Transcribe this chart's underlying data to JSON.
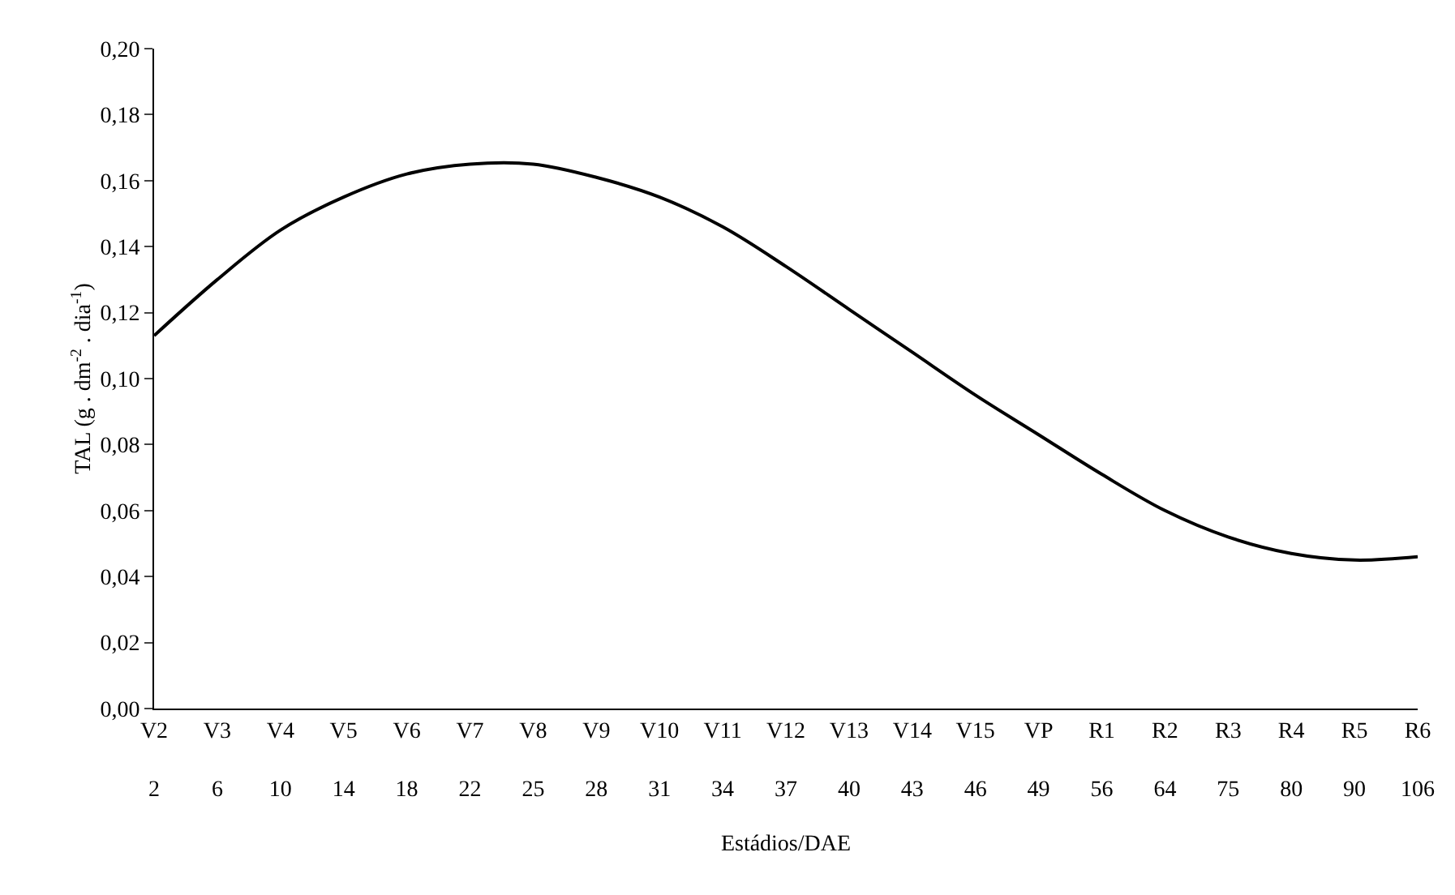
{
  "chart_data": {
    "type": "line",
    "xlabel": "Estádios/DAE",
    "ylabel": "TAL (g . dm$^{-2}$ . dia$^{-1}$)",
    "categories": [
      "V2\n2",
      "V3\n6",
      "V4\n10",
      "V5\n14",
      "V6\n18",
      "V7\n22",
      "V8\n25",
      "V9\n28",
      "V10\n31",
      "V11\n34",
      "V12\n37",
      "V13\n40",
      "V14\n43",
      "V15\n46",
      "VP\n49",
      "R1\n56",
      "R2\n64",
      "R3\n75",
      "R4\n80",
      "R5\n90",
      "R6\n106"
    ],
    "series": [
      {
        "color": "#000000",
        "values": [
          0.113,
          0.13,
          0.145,
          0.155,
          0.162,
          0.165,
          0.165,
          0.161,
          0.155,
          0.146,
          0.134,
          0.121,
          0.108,
          0.095,
          0.083,
          0.071,
          0.06,
          0.052,
          0.047,
          0.045,
          0.046
        ]
      }
    ],
    "ylim": [
      0,
      0.2
    ],
    "yticks": [
      {
        "value": 0,
        "label": "0,00"
      },
      {
        "value": 0.02,
        "label": "0,02"
      },
      {
        "value": 0.04,
        "label": "0,04"
      },
      {
        "value": 0.06,
        "label": "0,06"
      },
      {
        "value": 0.08,
        "label": "0,08"
      },
      {
        "value": 0.1,
        "label": "0,10"
      },
      {
        "value": 0.12,
        "label": "0,12"
      },
      {
        "value": 0.14,
        "label": "0,14"
      },
      {
        "value": 0.16,
        "label": "0,16"
      },
      {
        "value": 0.18,
        "label": "0,18"
      },
      {
        "value": 0.2,
        "label": "0,20"
      }
    ],
    "grid": false,
    "marker": "none",
    "line_style": "solid"
  }
}
